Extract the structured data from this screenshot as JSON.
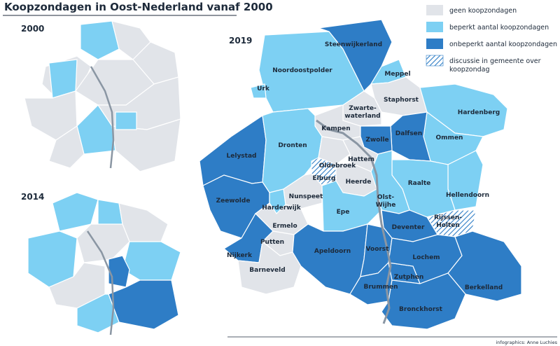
{
  "title": "Koopzondagen in Oost-Nederland vanaf 2000",
  "maps": [
    {
      "year": "2000"
    },
    {
      "year": "2014"
    },
    {
      "year": "2019"
    }
  ],
  "legend": [
    "geen koopzondagen",
    "beperkt aantal koopzondagen",
    "onbeperkt aantal koopzondagen",
    [
      "discussie in gemeente over",
      "koopzondag"
    ]
  ],
  "municipalities": [
    [
      "Steenwijkerland"
    ],
    [
      "Meppel"
    ],
    [
      "Noordoostpolder"
    ],
    [
      "Urk"
    ],
    [
      "Staphorst"
    ],
    [
      "Zwarte-",
      "waterland"
    ],
    [
      "Hardenberg"
    ],
    [
      "Kampen"
    ],
    [
      "Dalfsen"
    ],
    [
      "Zwolle"
    ],
    [
      "Ommen"
    ],
    [
      "Lelystad"
    ],
    [
      "Dronten"
    ],
    [
      "Hattem"
    ],
    [
      "Oldebroek"
    ],
    [
      "Elburg"
    ],
    [
      "Heerde"
    ],
    [
      "Raalte"
    ],
    [
      "Hellendoorn"
    ],
    [
      "Olst-",
      "Wijhe"
    ],
    [
      "Nunspeet"
    ],
    [
      "Harderwijk"
    ],
    [
      "Zeewolde"
    ],
    [
      "Epe"
    ],
    [
      "Rijssen-",
      "Holten"
    ],
    [
      "Deventer"
    ],
    [
      "Ermelo"
    ],
    [
      "Putten"
    ],
    [
      "Nijkerk"
    ],
    [
      "Apeldoorn"
    ],
    [
      "Voorst"
    ],
    [
      "Lochem"
    ],
    [
      "Barneveld"
    ],
    [
      "Zutphen"
    ],
    [
      "Brummen"
    ],
    [
      "Berkelland"
    ],
    [
      "Bronckhorst"
    ]
  ],
  "credit": "infographics: Anne Luchies"
}
